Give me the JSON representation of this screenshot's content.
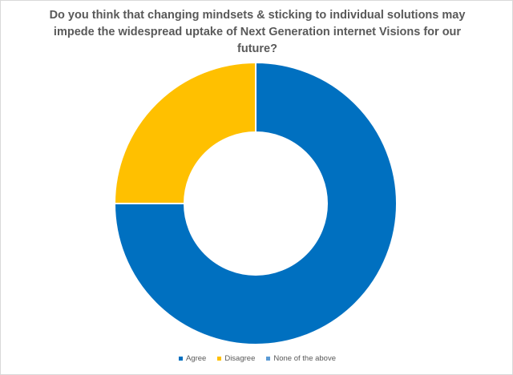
{
  "chart_data": {
    "type": "pie",
    "subtype": "donut",
    "title": "Do you think that changing mindsets & sticking to individual solutions may impede the widespread uptake of Next Generation internet Visions for our future?",
    "categories": [
      "Agree",
      "Disagree",
      "None of the above"
    ],
    "values": [
      75,
      25,
      0
    ],
    "unit": "percent",
    "colors": [
      "#0070C0",
      "#FFC000",
      "#5B9BD5"
    ],
    "legend_position": "bottom",
    "data_labels": false
  }
}
